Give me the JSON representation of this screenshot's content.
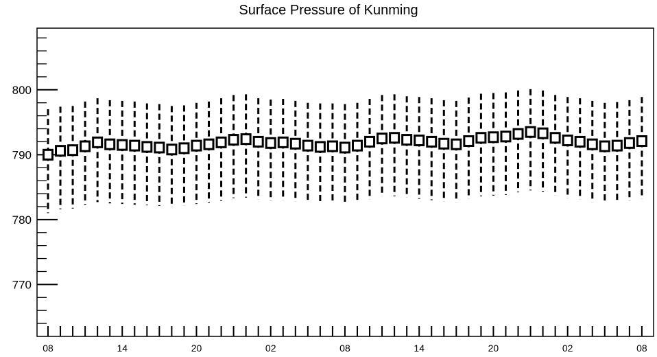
{
  "chart_data": {
    "type": "boxplot",
    "title": "Surface Pressure of Kunming",
    "xlabel": "",
    "ylabel": "",
    "ylim": [
      762,
      809.5
    ],
    "yticks": [
      770,
      780,
      790,
      800
    ],
    "x_tick_labels": [
      "08",
      "14",
      "20",
      "02",
      "08",
      "14",
      "20",
      "02",
      "08"
    ],
    "x_label_every": 6,
    "grid": false,
    "series": [
      {
        "median": [
          790.0,
          790.6,
          790.7,
          791.3,
          791.9,
          791.6,
          791.5,
          791.4,
          791.2,
          791.1,
          790.8,
          791.0,
          791.4,
          791.6,
          791.9,
          792.3,
          792.4,
          792.0,
          791.8,
          791.9,
          791.7,
          791.4,
          791.2,
          791.3,
          791.1,
          791.4,
          792.0,
          792.5,
          792.6,
          792.3,
          792.2,
          792.0,
          791.7,
          791.6,
          792.1,
          792.6,
          792.7,
          792.8,
          793.2,
          793.5,
          793.3,
          792.6,
          792.2,
          792.0,
          791.6,
          791.3,
          791.4,
          791.8,
          792.1
        ],
        "upper": [
          797.0,
          797.4,
          797.5,
          798.2,
          798.7,
          798.4,
          798.3,
          798.2,
          797.9,
          797.8,
          797.5,
          797.6,
          798.0,
          798.2,
          798.7,
          799.2,
          799.3,
          798.7,
          798.5,
          798.6,
          798.3,
          798.0,
          797.9,
          797.9,
          797.8,
          798.0,
          798.6,
          799.2,
          799.3,
          799.0,
          798.9,
          798.7,
          798.4,
          798.3,
          798.8,
          799.4,
          799.5,
          799.6,
          799.9,
          800.1,
          799.9,
          799.2,
          798.9,
          798.7,
          798.3,
          798.0,
          798.1,
          798.4,
          798.9
        ],
        "lower": [
          781.0,
          781.6,
          781.7,
          782.3,
          782.7,
          782.5,
          782.4,
          782.3,
          782.2,
          782.1,
          781.9,
          782.1,
          782.4,
          782.6,
          782.9,
          783.3,
          783.4,
          783.1,
          782.9,
          783.0,
          782.8,
          782.6,
          782.4,
          782.5,
          782.3,
          782.6,
          783.1,
          783.6,
          783.6,
          783.4,
          783.2,
          783.0,
          782.8,
          782.7,
          783.2,
          783.6,
          783.7,
          783.8,
          784.2,
          784.5,
          784.3,
          783.7,
          783.3,
          783.1,
          782.7,
          782.5,
          782.6,
          782.9,
          783.2
        ]
      }
    ]
  }
}
